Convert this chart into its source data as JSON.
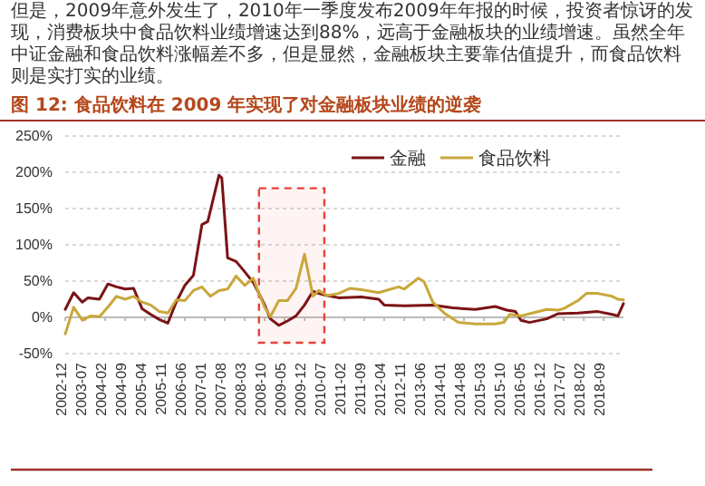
{
  "chart_data": {
    "type": "line",
    "title": "图 12: 食品饮料在 2009 年实现了对金融板块业绩的逆袭",
    "subtitle": "但是，2009年意外发生了，2010年一季度发布2009年年报的时候，投资者惊讶的发现，消费板块中食品饮料业绩增速达到88%，远高于金融板块的业绩增速。虽然全年中证金融和食品饮料涨幅差不多，但是显然，金融板块主要靠估值提升，而食品饮料则是实打实的业绩。",
    "xlim": [
      "2002-12",
      "2019-04"
    ],
    "xticks": [
      "2002-12",
      "2003-07",
      "2004-02",
      "2004-09",
      "2005-04",
      "2005-11",
      "2006-06",
      "2007-01",
      "2007-08",
      "2008-03",
      "2008-10",
      "2009-05",
      "2009-12",
      "2010-07",
      "2011-02",
      "2011-09",
      "2012-04",
      "2012-11",
      "2013-06",
      "2014-01",
      "2014-08",
      "2015-03",
      "2015-10",
      "2016-05",
      "2016-12",
      "2017-07",
      "2018-02",
      "2018-09"
    ],
    "ylim": [
      -50,
      250
    ],
    "yticks": [
      {
        "value": -50,
        "label": "-50%"
      },
      {
        "value": 0,
        "label": "0%"
      },
      {
        "value": 50,
        "label": "50%"
      },
      {
        "value": 100,
        "label": "100%"
      },
      {
        "value": 150,
        "label": "150%"
      },
      {
        "value": 200,
        "label": "200%"
      },
      {
        "value": 250,
        "label": "250%"
      }
    ],
    "grid": "y",
    "legend": "top right",
    "line_style": "solid",
    "marker": "none",
    "bands": [
      {
        "axis": "x",
        "from": "2008-08",
        "to": "2010-07",
        "color": "#e8403a"
      }
    ],
    "series": [
      {
        "name": "金融",
        "color": "#7b1315",
        "x": [
          "2002-12",
          "2003-03",
          "2003-06",
          "2003-08",
          "2003-12",
          "2004-03",
          "2004-06",
          "2004-09",
          "2004-12",
          "2005-03",
          "2005-06",
          "2005-09",
          "2005-12",
          "2006-03",
          "2006-06",
          "2006-09",
          "2006-12",
          "2007-02",
          "2007-06",
          "2007-07",
          "2007-09",
          "2007-12",
          "2008-03",
          "2008-06",
          "2008-08",
          "2008-10",
          "2008-12",
          "2009-03",
          "2009-06",
          "2009-09",
          "2009-12",
          "2010-03",
          "2010-05",
          "2010-08",
          "2010-12",
          "2011-08",
          "2012-02",
          "2012-04",
          "2012-11",
          "2013-09",
          "2014-04",
          "2014-12",
          "2015-07",
          "2015-11",
          "2016-02",
          "2016-04",
          "2016-07",
          "2017-01",
          "2017-05",
          "2017-12",
          "2018-07",
          "2018-12",
          "2019-02",
          "2019-04"
        ],
        "values": [
          11,
          34,
          21,
          27,
          25,
          46,
          42,
          39,
          40,
          12,
          4,
          -3,
          -8,
          21,
          44,
          58,
          128,
          132,
          196,
          192,
          82,
          77,
          63,
          48,
          33,
          17,
          -2,
          -11,
          -5,
          2,
          17,
          36,
          33,
          30,
          27,
          28,
          25,
          17,
          16,
          17,
          13,
          11,
          15,
          10,
          8,
          -4,
          -7,
          -2,
          5,
          6,
          8,
          4,
          2,
          19
        ]
      },
      {
        "name": "食品饮料",
        "color": "#c9a73a",
        "x": [
          "2002-12",
          "2003-03",
          "2003-06",
          "2003-09",
          "2003-12",
          "2004-03",
          "2004-06",
          "2004-09",
          "2004-12",
          "2005-03",
          "2005-06",
          "2005-09",
          "2005-12",
          "2006-03",
          "2006-06",
          "2006-09",
          "2006-12",
          "2007-03",
          "2007-06",
          "2007-09",
          "2007-12",
          "2008-03",
          "2008-06",
          "2008-08",
          "2008-10",
          "2008-12",
          "2009-03",
          "2009-06",
          "2009-09",
          "2009-12",
          "2010-03",
          "2010-05",
          "2010-08",
          "2010-12",
          "2011-04",
          "2011-08",
          "2012-02",
          "2012-09",
          "2012-11",
          "2013-04",
          "2013-06",
          "2013-09",
          "2014-01",
          "2014-06",
          "2014-12",
          "2015-07",
          "2015-10",
          "2015-12",
          "2016-04",
          "2016-08",
          "2017-01",
          "2017-05",
          "2017-07",
          "2017-11",
          "2017-12",
          "2018-03",
          "2018-07",
          "2018-12",
          "2019-02",
          "2019-04"
        ],
        "values": [
          -23,
          14,
          -4,
          2,
          1,
          14,
          29,
          25,
          29,
          21,
          17,
          8,
          6,
          24,
          23,
          37,
          42,
          29,
          37,
          39,
          57,
          44,
          54,
          33,
          14,
          1,
          23,
          23,
          40,
          87,
          29,
          37,
          30,
          33,
          40,
          38,
          34,
          42,
          39,
          54,
          49,
          21,
          6,
          -7,
          -9,
          -9,
          -7,
          4,
          2,
          6,
          11,
          10,
          12,
          21,
          23,
          33,
          33,
          29,
          25,
          24
        ]
      }
    ]
  }
}
